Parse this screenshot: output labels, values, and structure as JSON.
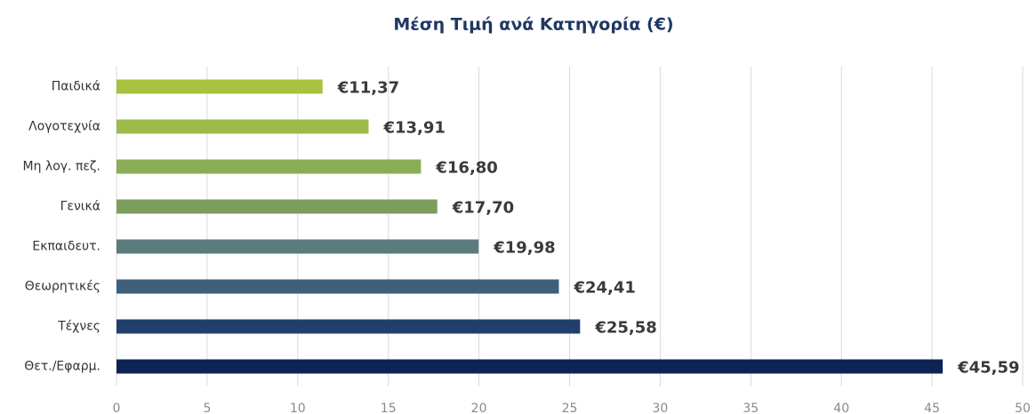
{
  "chart_data": {
    "type": "bar",
    "orientation": "horizontal",
    "title": "Μέση Τιμή ανά Κατηγορία (€)",
    "categories": [
      "Παιδικά",
      "Λογοτεχνία",
      "Μη λογ. πεζ.",
      "Γενικά",
      "Εκπαιδευτ.",
      "Θεωρητικές",
      "Τέχνες",
      "Θετ./Εφαρμ."
    ],
    "values": [
      11.37,
      13.91,
      16.8,
      17.7,
      19.98,
      24.41,
      25.58,
      45.59
    ],
    "value_labels": [
      "€11,37",
      "€13,91",
      "€16,80",
      "€17,70",
      "€19,98",
      "€24,41",
      "€25,58",
      "€45,59"
    ],
    "colors": [
      "#a8c13e",
      "#9dbb4b",
      "#8aad55",
      "#7c9d5d",
      "#5b7b7f",
      "#3f5f7b",
      "#213f6b",
      "#0c2454"
    ],
    "xlim": [
      0,
      50
    ],
    "xticks": [
      0,
      5,
      10,
      15,
      20,
      25,
      30,
      35,
      40,
      45,
      50
    ],
    "grid": true
  }
}
